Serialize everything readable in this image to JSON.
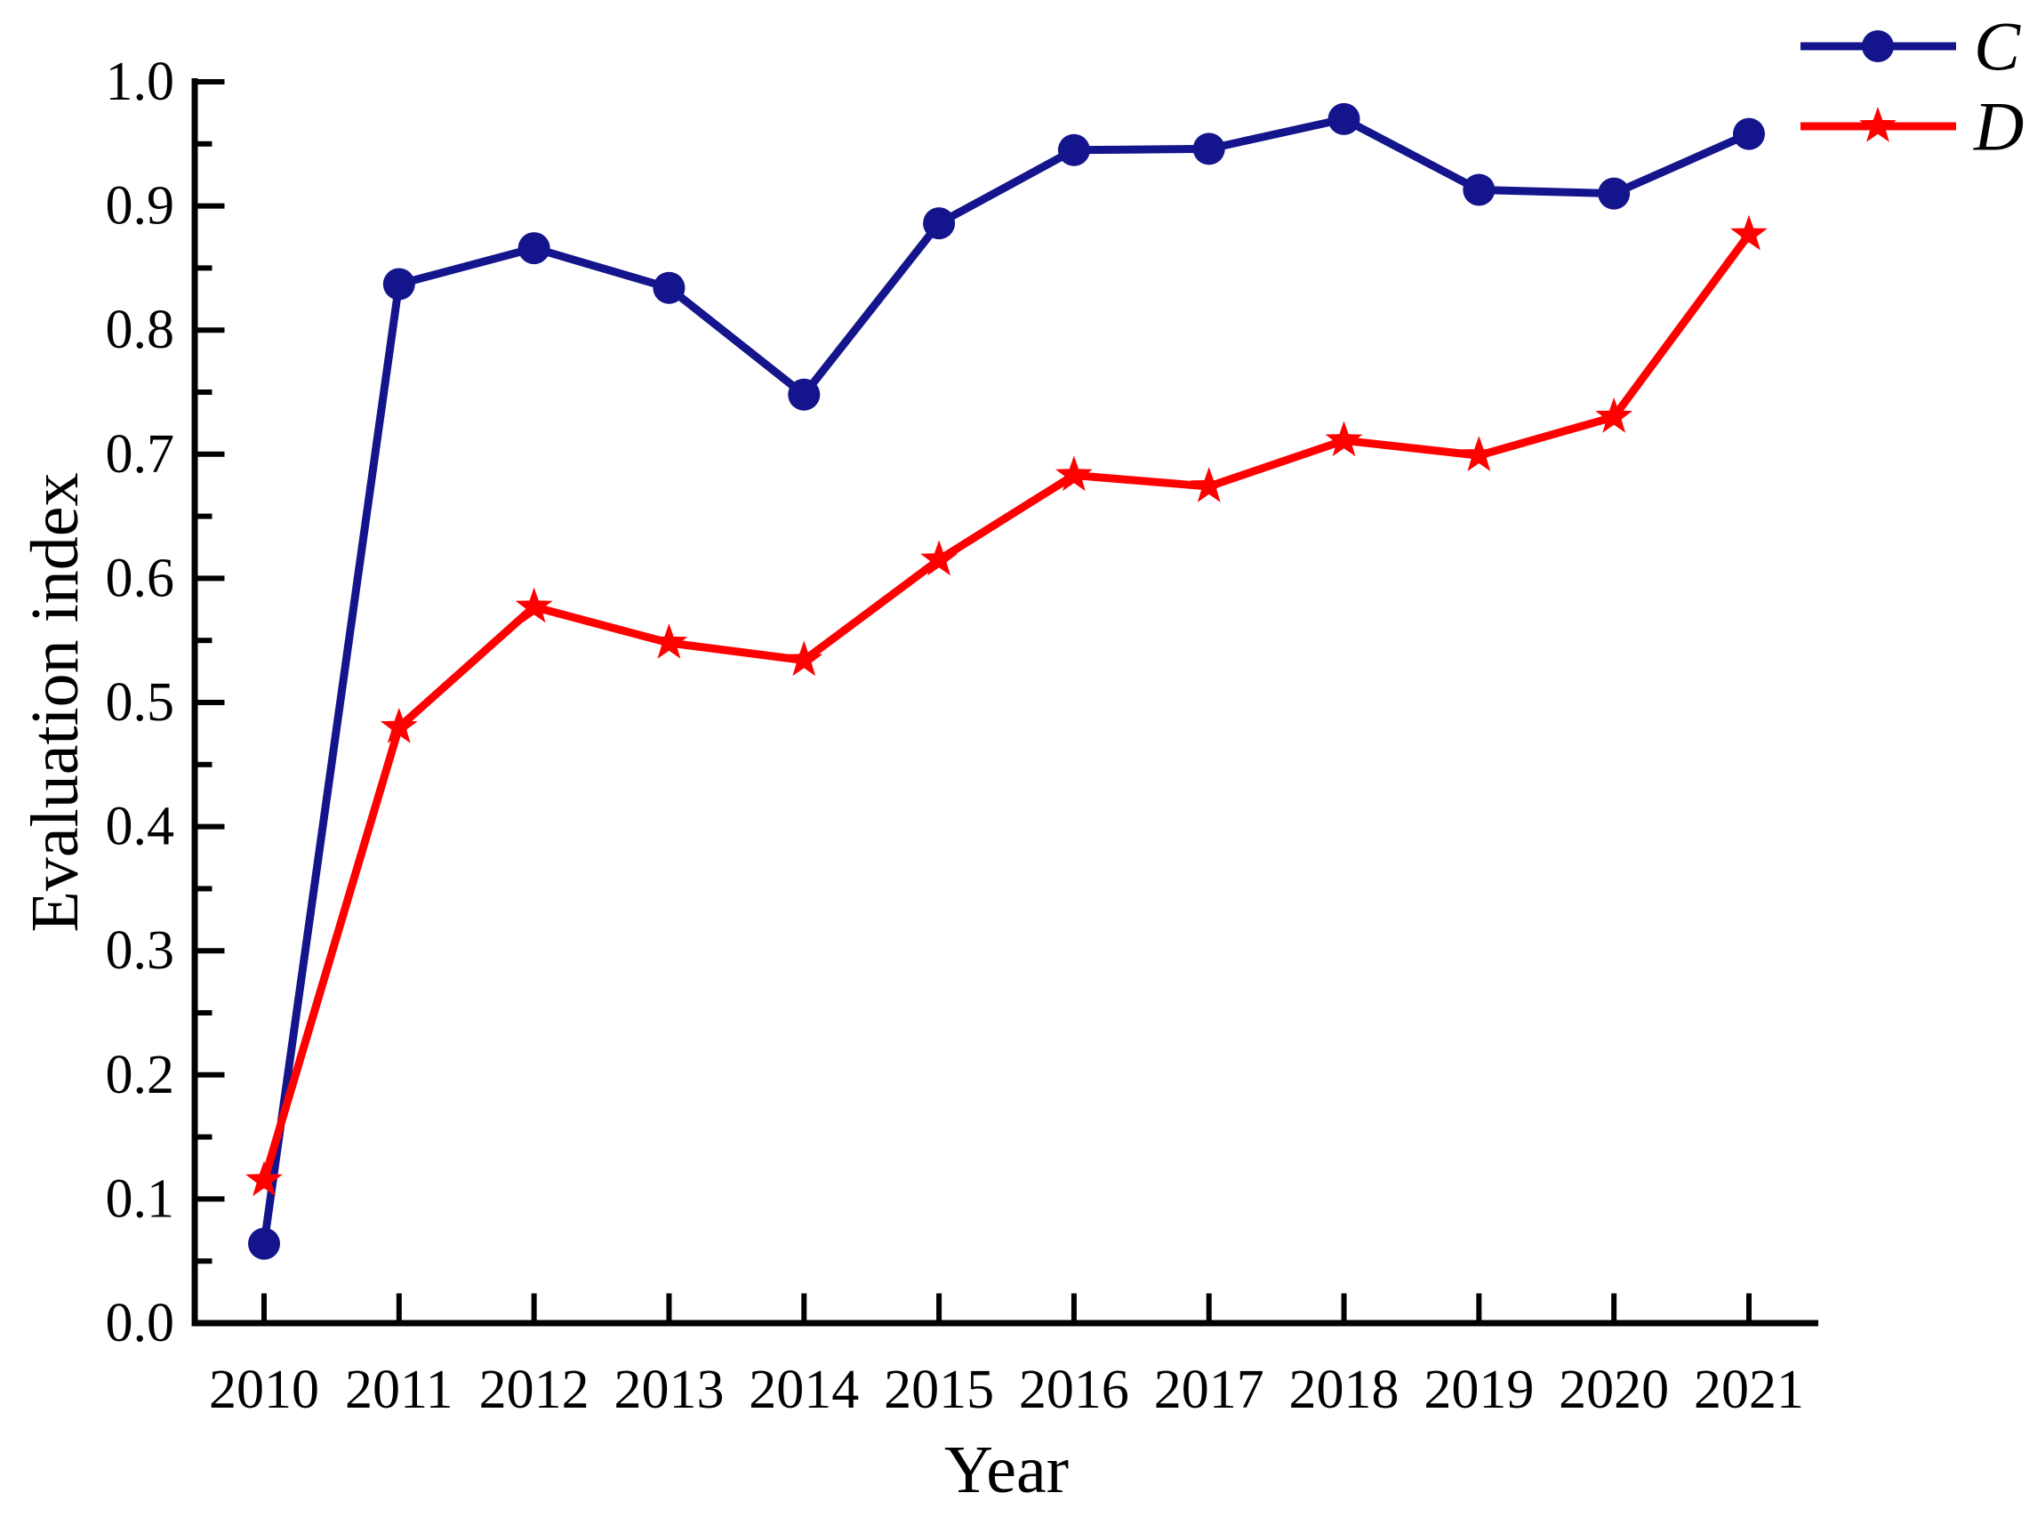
{
  "figure": {
    "background_color": "#ffffff",
    "axis_color": "#000000"
  },
  "chart_data": {
    "type": "line",
    "title": "",
    "xlabel": "Year",
    "ylabel": "Evaluation index",
    "categories": [
      "2010",
      "2011",
      "2012",
      "2013",
      "2014",
      "2015",
      "2016",
      "2017",
      "2018",
      "2019",
      "2020",
      "2021"
    ],
    "series": [
      {
        "name": "C",
        "color": "#14148C",
        "marker": "circle",
        "values": [
          0.064,
          0.837,
          0.866,
          0.834,
          0.748,
          0.886,
          0.945,
          0.946,
          0.97,
          0.913,
          0.91,
          0.958
        ]
      },
      {
        "name": "D",
        "color": "#FF0000",
        "marker": "star",
        "values": [
          0.115,
          0.48,
          0.577,
          0.548,
          0.534,
          0.615,
          0.683,
          0.674,
          0.711,
          0.699,
          0.73,
          0.877
        ]
      }
    ],
    "ylim": [
      0.0,
      1.0
    ],
    "y_major_step": 0.1,
    "y_minor_step": 0.05,
    "y_tick_decimals": 1,
    "grid": false,
    "legend_position": "top-right",
    "legend_frame": false
  }
}
